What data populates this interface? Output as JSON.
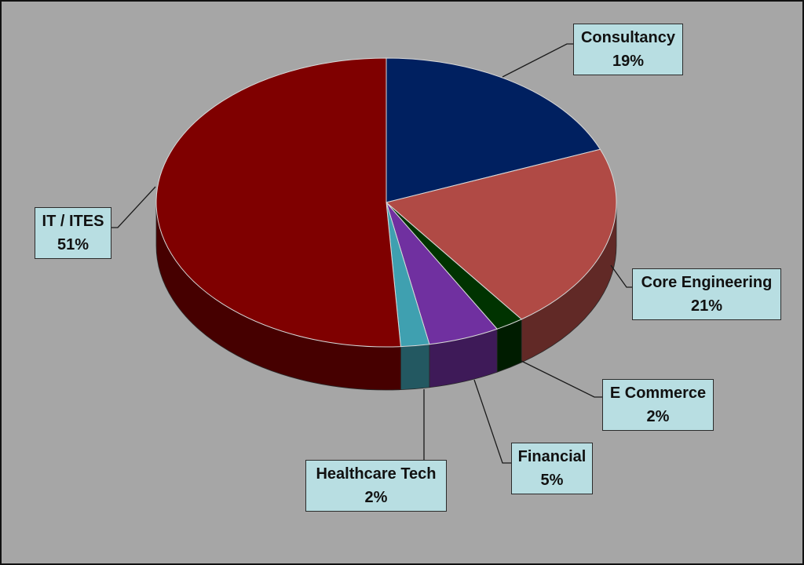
{
  "chart_data": {
    "type": "pie",
    "title": "",
    "legend": "none",
    "style": "3d",
    "categories": [
      "Consultancy",
      "Core Engineering",
      "E Commerce",
      "Financial",
      "Healthcare Tech",
      "IT / ITES"
    ],
    "values": [
      19,
      21,
      2,
      5,
      2,
      51
    ],
    "labels": [
      "19%",
      "21%",
      "2%",
      "5%",
      "2%",
      "51%"
    ],
    "colors": [
      "#002060",
      "#b04a45",
      "#003300",
      "#7030a0",
      "#3fa0b0",
      "#7f0000"
    ]
  }
}
